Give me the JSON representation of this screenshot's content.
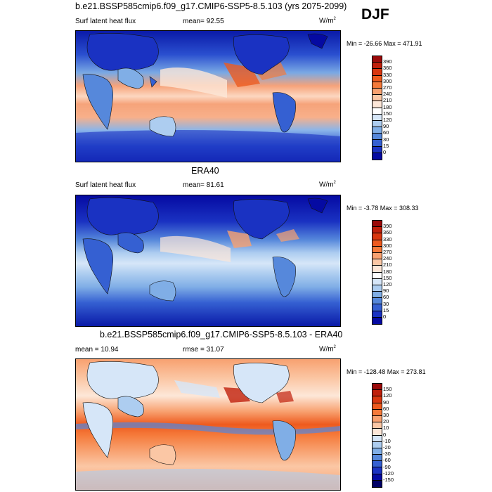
{
  "season": "DJF",
  "units": "W/m",
  "units_sup": "2",
  "panel1": {
    "title": "b.e21.BSSP585cmip6.f09_g17.CMIP6-SSP5-8.5.103 (yrs 2075-2099)",
    "variable": "Surf latent heat flux",
    "mean_text": "mean=  92.55",
    "minmax": "Min = -26.66 Max = 471.91"
  },
  "panel2": {
    "title": "ERA40",
    "variable": "Surf latent heat flux",
    "mean_text": "mean=  81.61",
    "minmax": "Min =  -3.78 Max = 308.33"
  },
  "panel3": {
    "title": "b.e21.BSSP585cmip6.f09_g17.CMIP6-SSP5-8.5.103 - ERA40",
    "mean_text": "mean =  10.94",
    "rmse_text": "rmse =  31.07",
    "minmax": "Min = -128.48 Max = 273.81"
  },
  "colorbars": {
    "flux": {
      "labels": [
        "390",
        "360",
        "330",
        "300",
        "270",
        "240",
        "210",
        "180",
        "150",
        "120",
        "90",
        "60",
        "30",
        "15",
        "0"
      ],
      "colors": [
        "#9b0a0a",
        "#c0200c",
        "#d9360f",
        "#ee5a1e",
        "#f57a3a",
        "#f8a170",
        "#fbc7a5",
        "#fde7d8",
        "#ffffff",
        "#d6e6f8",
        "#adcdf0",
        "#80aee6",
        "#5688db",
        "#3560d2",
        "#1a32c2",
        "#050aa2"
      ]
    },
    "diff": {
      "labels": [
        "150",
        "120",
        "90",
        "60",
        "30",
        "20",
        "10",
        "0",
        "-10",
        "-20",
        "-30",
        "-60",
        "-90",
        "-120",
        "-150"
      ],
      "colors": [
        "#9b0a0a",
        "#c0200c",
        "#d9360f",
        "#ee5a1e",
        "#f57a3a",
        "#f8a170",
        "#fbc7a5",
        "#fde7d8",
        "#d6e6f8",
        "#adcdf0",
        "#80aee6",
        "#5688db",
        "#3560d2",
        "#1a32c2",
        "#050aa2",
        "#000066"
      ]
    }
  }
}
